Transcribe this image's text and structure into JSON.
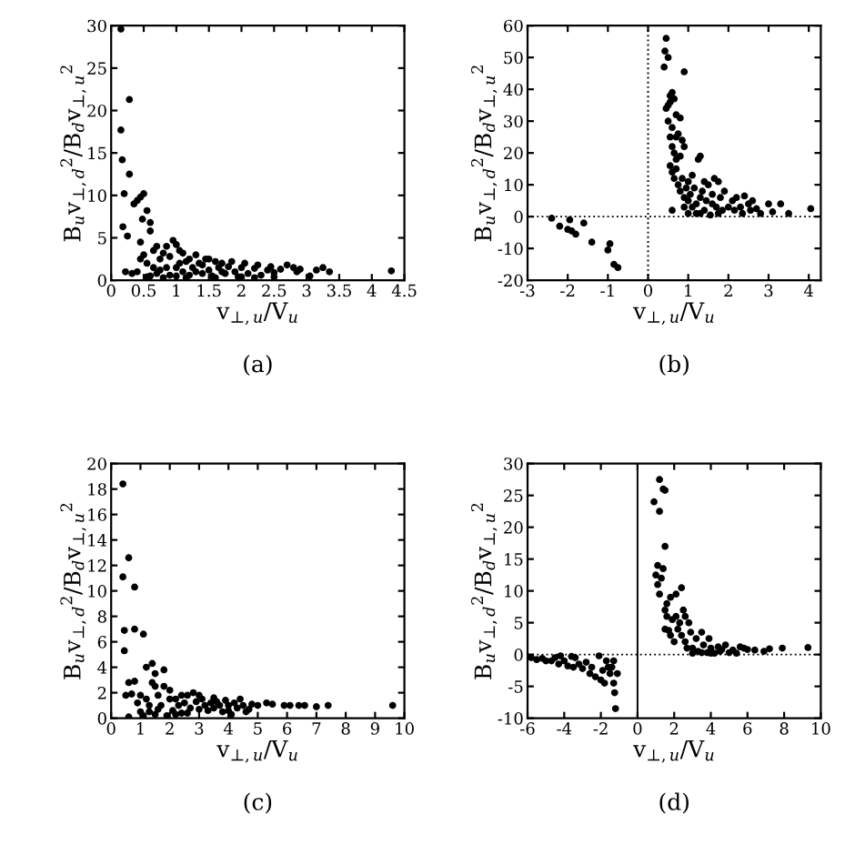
{
  "chart_data": [
    {
      "type": "scatter",
      "title": "(a)",
      "xlabel": "v$_{⊥,u}$/V$_{u}$",
      "ylabel": "B$_{u}$v$_{⊥,d}$$^{2}$/B$_{d}$v$_{⊥,u}$$^{2}$",
      "marker": "circle",
      "grid": false,
      "legend": false,
      "xlim": [
        0,
        4.5
      ],
      "ylim": [
        0,
        30
      ],
      "xticks": [
        0,
        0.5,
        1,
        1.5,
        2,
        2.5,
        3,
        3.5,
        4,
        4.5
      ],
      "yticks": [
        0,
        5,
        10,
        15,
        20,
        25,
        30
      ],
      "series": [
        {
          "color": "#000000",
          "x": [
            0.15,
            0.15,
            0.17,
            0.2,
            0.28,
            0.28,
            0.18,
            0.25,
            0.22,
            0.32,
            0.35,
            0.4,
            0.45,
            0.5,
            0.48,
            0.55,
            0.6,
            0.6,
            0.45,
            0.5,
            0.55,
            0.65,
            0.7,
            0.75,
            0.8,
            0.85,
            0.9,
            0.95,
            1.0,
            1.0,
            1.05,
            1.1,
            1.1,
            1.15,
            1.2,
            1.25,
            1.3,
            1.35,
            1.4,
            1.45,
            1.5,
            1.55,
            1.6,
            1.65,
            1.7,
            1.75,
            1.8,
            1.85,
            1.9,
            1.95,
            2.0,
            2.05,
            2.1,
            2.2,
            2.25,
            2.3,
            2.4,
            2.45,
            2.5,
            2.6,
            2.7,
            2.8,
            2.85,
            2.9,
            3.05,
            3.15,
            3.25,
            3.35,
            4.3,
            0.6,
            0.7,
            0.8,
            0.9,
            0.65,
            0.75,
            1.0,
            1.2,
            1.3,
            1.5,
            1.6,
            1.7,
            2.0,
            2.2,
            2.5,
            0.45,
            0.4,
            0.55,
            1.05,
            1.15,
            0.85,
            1.4
          ],
          "values": [
            29.6,
            17.7,
            14.2,
            10.2,
            21.3,
            12.5,
            6.3,
            5.2,
            1.0,
            0.8,
            9.0,
            9.4,
            9.8,
            10.2,
            7.2,
            8.2,
            6.8,
            5.8,
            4.5,
            3.0,
            2.0,
            3.5,
            4.0,
            2.5,
            3.2,
            1.5,
            2.8,
            4.7,
            4.2,
            0.5,
            2.0,
            3.2,
            1.0,
            0.3,
            2.5,
            1.5,
            3.0,
            2.0,
            0.8,
            2.5,
            1.2,
            0.5,
            2.2,
            1.5,
            2.0,
            0.8,
            1.6,
            2.2,
            1.0,
            0.4,
            1.5,
            2.0,
            0.8,
            1.4,
            1.8,
            0.6,
            1.2,
            1.6,
            0.9,
            1.3,
            1.8,
            1.5,
            1.0,
            1.3,
            0.5,
            1.2,
            1.5,
            1.0,
            1.1,
            0.5,
            0.8,
            0.3,
            0.6,
            1.5,
            1.2,
            1.5,
            0.6,
            1.0,
            2.5,
            0.3,
            1.0,
            0.4,
            0.3,
            0.4,
            2.5,
            1.0,
            0.4,
            3.5,
            2.2,
            4.0,
            1.8
          ]
        }
      ]
    },
    {
      "type": "scatter",
      "title": "(b)",
      "xlabel": "v$_{⊥,u}$/V$_{u}$",
      "ylabel": "B$_{u}$v$_{⊥,d}$$^{2}$/B$_{d}$v$_{⊥,u}$$^{2}$",
      "marker": "circle",
      "grid": false,
      "legend": false,
      "xlim": [
        -3,
        4.3
      ],
      "ylim": [
        -20,
        60
      ],
      "xticks": [
        -3,
        -2,
        -1,
        0,
        1,
        2,
        3,
        4
      ],
      "yticks": [
        -20,
        -10,
        0,
        10,
        20,
        30,
        40,
        50,
        60
      ],
      "ref_lines": [
        {
          "axis": "x",
          "value": 0,
          "line_style": "dotted"
        },
        {
          "axis": "y",
          "value": 0,
          "line_style": "dotted"
        }
      ],
      "series": [
        {
          "color": "#000000",
          "x": [
            -2.4,
            -2.2,
            -2.0,
            -1.95,
            -1.9,
            -1.8,
            -1.6,
            -1.4,
            -1.0,
            -0.95,
            -0.85,
            -0.75,
            0.45,
            0.42,
            0.5,
            0.4,
            0.9,
            0.55,
            0.6,
            0.5,
            0.45,
            0.55,
            0.65,
            0.5,
            0.7,
            0.8,
            0.6,
            0.7,
            0.75,
            0.85,
            0.9,
            0.55,
            0.6,
            0.65,
            0.7,
            0.8,
            0.55,
            0.6,
            0.65,
            0.7,
            0.75,
            0.8,
            0.85,
            0.9,
            0.95,
            1.0,
            1.0,
            1.05,
            1.1,
            1.1,
            1.15,
            1.2,
            1.25,
            1.3,
            1.3,
            1.35,
            1.4,
            1.4,
            1.45,
            1.5,
            1.55,
            1.6,
            1.65,
            1.7,
            1.75,
            1.8,
            1.85,
            1.9,
            0.6,
            1.2,
            1.0,
            2.0,
            2.1,
            2.15,
            2.2,
            2.3,
            2.35,
            2.4,
            2.5,
            2.55,
            2.6,
            2.7,
            2.8,
            3.0,
            3.1,
            3.3,
            3.5,
            4.05,
            1.3,
            0.9,
            1.6,
            1.75
          ],
          "values": [
            -0.5,
            -3,
            -4,
            -1,
            -4.5,
            -5.5,
            -2,
            -8,
            -10.5,
            -8.5,
            -15,
            -16,
            56,
            52,
            50,
            47,
            45.5,
            38,
            39,
            35,
            34,
            36,
            37,
            30,
            32,
            31,
            28,
            25,
            26,
            24,
            22,
            25,
            22,
            20,
            18,
            19,
            16,
            14,
            12,
            15,
            10,
            8,
            12,
            6,
            9,
            11,
            5,
            7,
            3,
            13,
            9,
            4,
            18,
            19,
            6,
            8,
            2,
            11,
            5,
            10,
            0.5,
            7,
            12,
            3,
            11,
            6,
            2,
            8,
            2,
            1,
            1,
            3,
            5,
            2,
            6,
            3,
            1,
            6.5,
            4,
            2,
            5,
            2.5,
            1,
            4,
            1.5,
            4,
            1,
            2.5,
            1,
            3,
            4,
            1
          ]
        }
      ]
    },
    {
      "type": "scatter",
      "title": "(c)",
      "xlabel": "v$_{⊥,u}$/V$_{u}$",
      "ylabel": "B$_{u}$v$_{⊥,d}$$^{2}$/B$_{d}$v$_{⊥,u}$$^{2}$",
      "marker": "circle",
      "grid": false,
      "legend": false,
      "xlim": [
        0,
        10
      ],
      "ylim": [
        0,
        20
      ],
      "xticks": [
        0,
        1,
        2,
        3,
        4,
        5,
        6,
        7,
        8,
        9,
        10
      ],
      "yticks": [
        0,
        2,
        4,
        6,
        8,
        10,
        12,
        14,
        16,
        18,
        20
      ],
      "series": [
        {
          "color": "#000000",
          "x": [
            0.4,
            0.6,
            0.8,
            0.4,
            0.45,
            0.8,
            1.1,
            0.45,
            0.6,
            0.8,
            1.2,
            1.4,
            1.5,
            1.8,
            1.4,
            0.5,
            0.7,
            0.9,
            1.0,
            1.2,
            1.3,
            1.5,
            1.6,
            1.7,
            1.8,
            2.0,
            2.1,
            2.2,
            2.3,
            2.4,
            2.5,
            2.6,
            2.7,
            2.8,
            2.9,
            3.0,
            3.1,
            3.2,
            3.4,
            3.5,
            3.6,
            3.7,
            3.8,
            3.9,
            4.0,
            4.1,
            4.2,
            4.3,
            4.4,
            4.5,
            4.7,
            4.8,
            5.0,
            5.3,
            5.5,
            5.9,
            6.1,
            6.4,
            6.6,
            7.0,
            7.4,
            9.6,
            0.6,
            1.1,
            1.5,
            1.9,
            2.2,
            2.6,
            3.3,
            4.6,
            1.3,
            2.0,
            3.0,
            2.4,
            1.0,
            1.6,
            3.5,
            4.0
          ],
          "values": [
            18.4,
            12.6,
            10.3,
            11.1,
            6.9,
            7,
            6.6,
            5.3,
            2.8,
            2.9,
            4,
            4.3,
            3.5,
            3.8,
            2.8,
            1.8,
            1.9,
            1.2,
            1.8,
            1.5,
            0.5,
            2.5,
            1.8,
            1.0,
            2.5,
            2.2,
            0.6,
            1.5,
            1.0,
            0.4,
            1.2,
            1.8,
            0.8,
            2.0,
            1.3,
            0.7,
            1.5,
            1.0,
            1.2,
            0.8,
            1.3,
            1.0,
            0.5,
            1.4,
            1.0,
            0.3,
            1.2,
            0.8,
            1.5,
            1.0,
            0.7,
            1.1,
            1.0,
            1.2,
            1.1,
            1.0,
            1.0,
            1.0,
            1.0,
            0.9,
            1.0,
            1.0,
            0.1,
            0.2,
            0.3,
            0.2,
            0.3,
            0.4,
            0.6,
            0.5,
            1.0,
            1.5,
            1.8,
            1.8,
            0.5,
            0.7,
            1.6,
            0.6
          ]
        }
      ]
    },
    {
      "type": "scatter",
      "title": "(d)",
      "xlabel": "v$_{⊥,u}$/V$_{u}$",
      "ylabel": "B$_{u}$v$_{⊥,d}$$^{2}$/B$_{d}$v$_{⊥,u}$$^{2}$",
      "marker": "circle",
      "grid": false,
      "legend": false,
      "xlim": [
        -6,
        10
      ],
      "ylim": [
        -10,
        30
      ],
      "xticks": [
        -6,
        -4,
        -2,
        0,
        2,
        4,
        6,
        8,
        10
      ],
      "yticks": [
        -10,
        -5,
        0,
        5,
        10,
        15,
        20,
        25,
        30
      ],
      "ref_lines": [
        {
          "axis": "x",
          "value": 0,
          "line_style": "solid"
        },
        {
          "axis": "y",
          "value": 0,
          "line_style": "dotted"
        }
      ],
      "series": [
        {
          "color": "#000000",
          "x": [
            -5.8,
            -5.5,
            -5.2,
            -5.0,
            -4.7,
            -4.5,
            -4.3,
            -4.2,
            -4.0,
            -3.8,
            -3.6,
            -3.5,
            -3.4,
            -3.2,
            -3.0,
            -2.8,
            -2.6,
            -2.5,
            -2.3,
            -2.1,
            -2.0,
            -1.9,
            -1.8,
            -1.7,
            -1.6,
            -1.5,
            -1.4,
            -1.3,
            -1.25,
            -1.2,
            -1.1,
            -1.3,
            1.2,
            1.4,
            1.5,
            0.9,
            1.2,
            1.5,
            1.1,
            1.4,
            1.0,
            1.1,
            1.3,
            1.2,
            1.6,
            1.8,
            2.1,
            2.4,
            1.5,
            1.6,
            1.9,
            2.1,
            2.3,
            2.5,
            2.6,
            2.8,
            1.5,
            1.8,
            2.0,
            2.2,
            2.4,
            2.6,
            2.9,
            3.0,
            3.2,
            3.3,
            3.5,
            3.6,
            3.8,
            3.9,
            4.0,
            4.2,
            4.4,
            4.5,
            4.6,
            4.8,
            5.0,
            5.2,
            5.4,
            5.6,
            5.8,
            6.0,
            6.4,
            6.9,
            7.2,
            7.9,
            9.3,
            3.0,
            3.5,
            4.0,
            2.7,
            1.7
          ],
          "values": [
            -0.5,
            -0.8,
            -0.6,
            -1.0,
            -1.0,
            -0.5,
            -1.5,
            -0.2,
            -1.0,
            -1.8,
            -0.3,
            -2.0,
            -0.5,
            -1.5,
            -2.2,
            -1.2,
            -3.0,
            -2.0,
            -3.5,
            -0.2,
            -4.0,
            -2.5,
            -4.5,
            -1.0,
            -2.0,
            -3.0,
            -2.0,
            -4.5,
            -6.0,
            -8.5,
            -3.0,
            -1.0,
            27.5,
            26,
            25.8,
            24,
            22.5,
            17,
            14,
            13.5,
            12.5,
            11,
            12,
            9.5,
            8,
            9,
            9.5,
            10.5,
            7,
            6,
            5.5,
            6,
            5,
            7,
            6,
            5,
            4,
            3,
            2,
            4,
            3,
            2,
            3.5,
            1,
            2.5,
            0.5,
            3.5,
            1.5,
            0.3,
            2.5,
            1.0,
            0.2,
            1.2,
            0.5,
            0.8,
            1.5,
            0.3,
            0.7,
            0.2,
            1.2,
            1.0,
            0.8,
            0.7,
            0.5,
            0.9,
            1.0,
            1.1,
            0.2,
            0.3,
            0.2,
            1.0,
            3.8
          ]
        }
      ]
    }
  ]
}
